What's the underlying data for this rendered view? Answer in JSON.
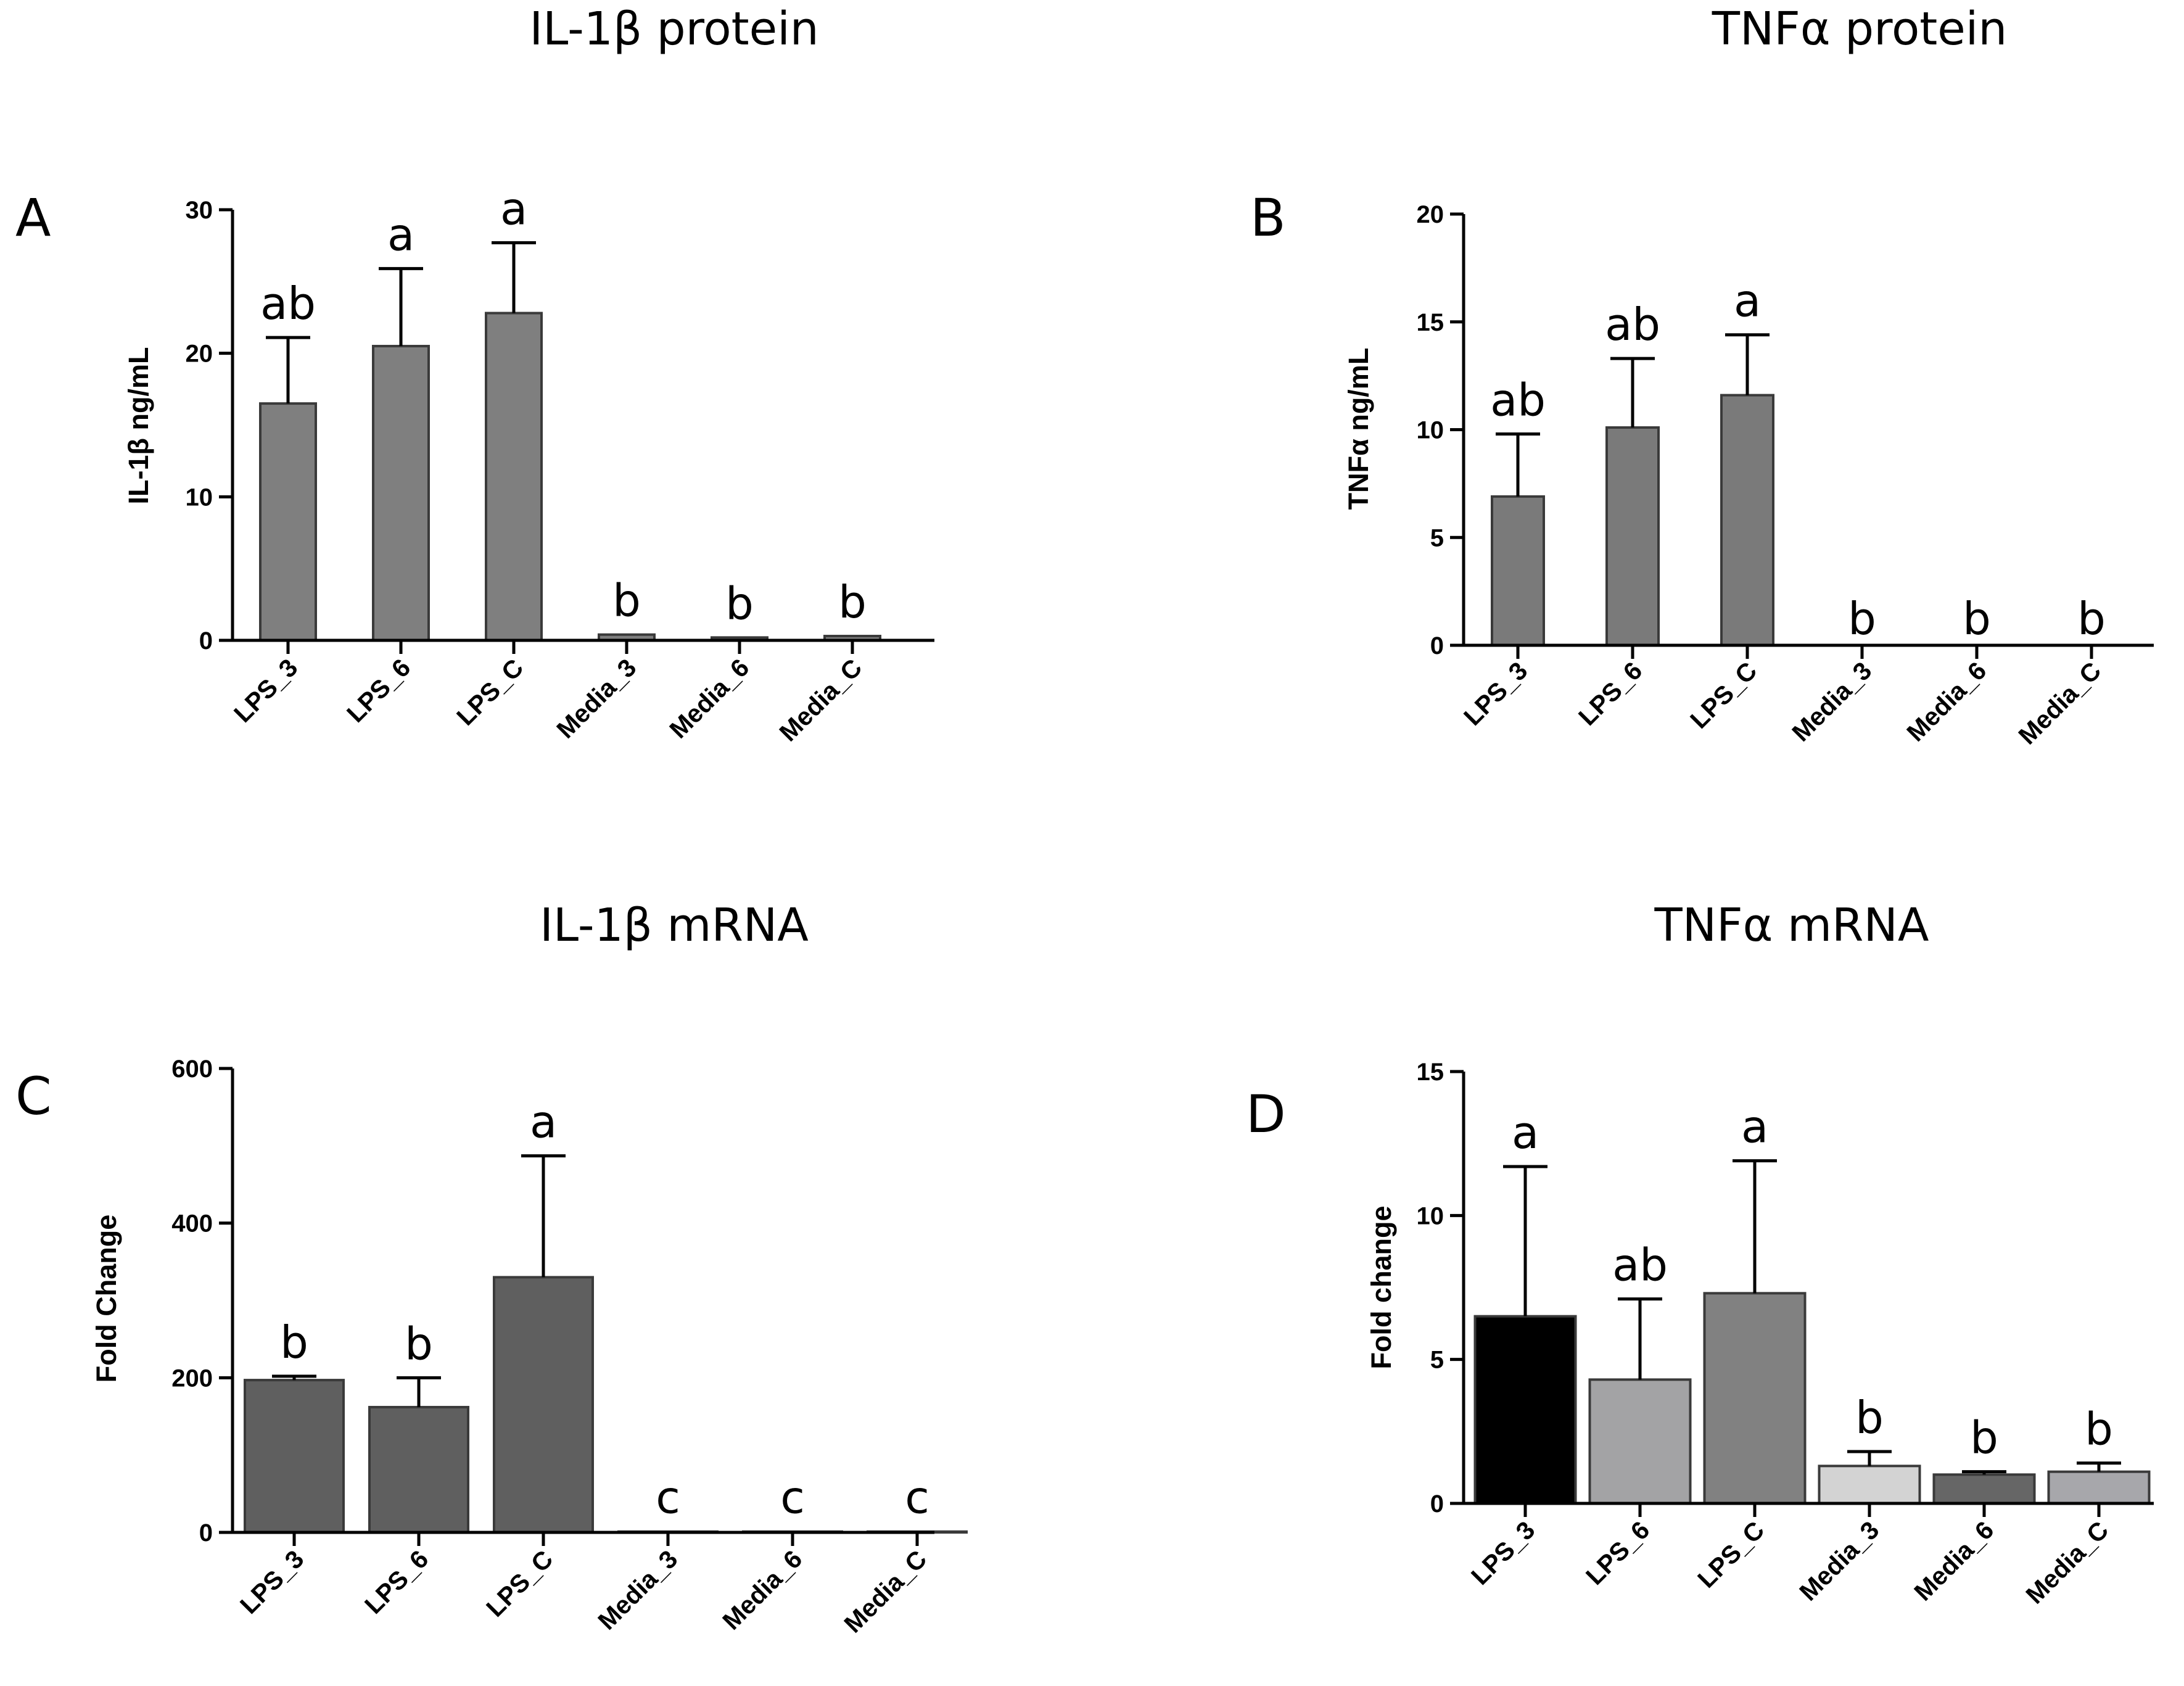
{
  "colors": {
    "A": "#7f7f7f",
    "B": "#7a7a7a",
    "C": "#5f5f5f",
    "D_bars": [
      "#000000",
      "#a3a3a5",
      "#818181",
      "#d3d3d3",
      "#666666",
      "#a7a7ab"
    ]
  },
  "chart_data": [
    {
      "id": "A",
      "type": "bar",
      "title": "IL-1β protein",
      "xlabel": "",
      "ylabel": "IL-1β ng/mL",
      "ylim": [
        0,
        30
      ],
      "yticks": [
        0,
        10,
        20,
        30
      ],
      "categories": [
        "LPS_3",
        "LPS_6",
        "LPS_C",
        "Media_3",
        "Media_6",
        "Media_C"
      ],
      "values": [
        16.5,
        20.5,
        22.8,
        0.4,
        0.2,
        0.3
      ],
      "errors": [
        4.6,
        5.4,
        4.9,
        0.0,
        0.0,
        0.0
      ],
      "significance": [
        "ab",
        "a",
        "a",
        "b",
        "b",
        "b"
      ]
    },
    {
      "id": "B",
      "type": "bar",
      "title": "TNFα protein",
      "xlabel": "",
      "ylabel": "TNFα ng/mL",
      "ylim": [
        0,
        20
      ],
      "yticks": [
        0,
        5,
        10,
        15,
        20
      ],
      "categories": [
        "LPS_3",
        "LPS_6",
        "LPS_C",
        "Media_3",
        "Media_6",
        "Media_C"
      ],
      "values": [
        6.9,
        10.1,
        11.6,
        0,
        0,
        0
      ],
      "errors": [
        2.9,
        3.2,
        2.8,
        0,
        0,
        0
      ],
      "significance": [
        "ab",
        "ab",
        "a",
        "b",
        "b",
        "b"
      ]
    },
    {
      "id": "C",
      "type": "bar",
      "title": "IL-1β mRNA",
      "xlabel": "",
      "ylabel": "Fold Change",
      "ylim": [
        0,
        600
      ],
      "yticks": [
        0,
        200,
        400,
        600
      ],
      "categories": [
        "LPS_3",
        "LPS_6",
        "LPS_C",
        "Media_3",
        "Media_6",
        "Media_C"
      ],
      "values": [
        197,
        162,
        330,
        1,
        1,
        1
      ],
      "errors": [
        5,
        38,
        157,
        0,
        0,
        0
      ],
      "significance": [
        "b",
        "b",
        "a",
        "c",
        "c",
        "c"
      ]
    },
    {
      "id": "D",
      "type": "bar",
      "title": "TNFα mRNA",
      "xlabel": "",
      "ylabel": "Fold change",
      "ylim": [
        0,
        15
      ],
      "yticks": [
        0,
        5,
        10,
        15
      ],
      "categories": [
        "LPS_3",
        "LPS_6",
        "LPS_C",
        "Media_3",
        "Media_6",
        "Media_C"
      ],
      "values": [
        6.5,
        4.3,
        7.3,
        1.3,
        1.0,
        1.1
      ],
      "errors": [
        5.2,
        2.8,
        4.6,
        0.5,
        0.1,
        0.3
      ],
      "significance": [
        "a",
        "ab",
        "a",
        "b",
        "b",
        "b"
      ]
    }
  ]
}
